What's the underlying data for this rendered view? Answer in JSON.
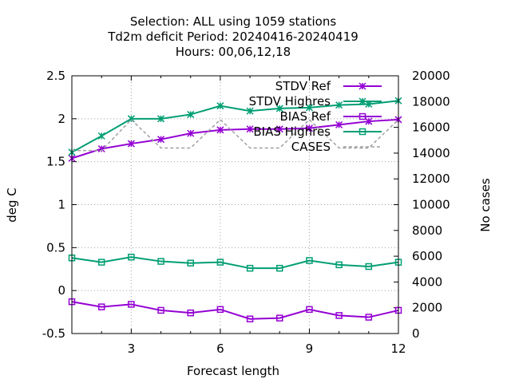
{
  "chart_data": {
    "type": "line",
    "title_lines": [
      "Selection: ALL using  1059 stations",
      "Td2m deficit   Period: 20240416-20240419",
      "Hours:  00,06,12,18"
    ],
    "xlabel": "Forecast length",
    "ylabel": "deg C",
    "y2label": "No cases",
    "xlim": [
      1,
      12
    ],
    "ylim": [
      -0.5,
      2.5
    ],
    "y2lim": [
      0,
      20000
    ],
    "xticks": [
      3,
      6,
      9,
      12
    ],
    "yticks": [
      -0.5,
      0,
      0.5,
      1,
      1.5,
      2,
      2.5
    ],
    "y2ticks": [
      0,
      2000,
      4000,
      6000,
      8000,
      10000,
      12000,
      14000,
      16000,
      18000,
      20000
    ],
    "grid": true,
    "legend_position": "top-right",
    "x": [
      1,
      2,
      3,
      4,
      5,
      6,
      7,
      8,
      9,
      10,
      11,
      12
    ],
    "series": [
      {
        "name": "STDV Ref",
        "axis": "y1",
        "color": "#9400d3",
        "marker": "x",
        "values": [
          1.54,
          1.65,
          1.71,
          1.76,
          1.83,
          1.87,
          1.88,
          1.88,
          1.89,
          1.93,
          1.97,
          1.99
        ]
      },
      {
        "name": "STDV Highres",
        "axis": "y1",
        "color": "#009e73",
        "marker": "x",
        "values": [
          1.61,
          1.8,
          2.0,
          2.0,
          2.05,
          2.15,
          2.09,
          2.12,
          2.13,
          2.16,
          2.17,
          2.21
        ]
      },
      {
        "name": "BIAS Ref",
        "axis": "y1",
        "color": "#9400d3",
        "marker": "square",
        "values": [
          -0.13,
          -0.19,
          -0.16,
          -0.23,
          -0.26,
          -0.22,
          -0.33,
          -0.32,
          -0.22,
          -0.29,
          -0.31,
          -0.23
        ]
      },
      {
        "name": "BIAS Highres",
        "axis": "y1",
        "color": "#009e73",
        "marker": "square",
        "values": [
          0.38,
          0.33,
          0.39,
          0.34,
          0.32,
          0.33,
          0.26,
          0.26,
          0.35,
          0.3,
          0.28,
          0.33
        ]
      },
      {
        "name": "CASES",
        "axis": "y2",
        "color": "#a0a0a0",
        "marker": "none",
        "dashed": true,
        "values": [
          14200,
          14200,
          16600,
          14400,
          14400,
          16600,
          14400,
          14400,
          16600,
          14400,
          14400,
          16600
        ]
      }
    ]
  }
}
